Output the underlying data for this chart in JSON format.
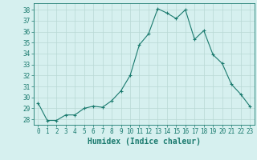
{
  "x": [
    0,
    1,
    2,
    3,
    4,
    5,
    6,
    7,
    8,
    9,
    10,
    11,
    12,
    13,
    14,
    15,
    16,
    17,
    18,
    19,
    20,
    21,
    22,
    23
  ],
  "y": [
    29.5,
    27.9,
    27.9,
    28.4,
    28.4,
    29.0,
    29.2,
    29.1,
    29.7,
    30.6,
    32.0,
    34.8,
    35.8,
    38.1,
    37.7,
    37.2,
    38.0,
    35.3,
    36.1,
    33.9,
    33.1,
    31.2,
    30.3,
    29.2
  ],
  "line_color": "#1a7a6e",
  "marker": "+",
  "marker_size": 3.5,
  "marker_color": "#1a7a6e",
  "bg_color": "#d6f0ef",
  "grid_color": "#b8d8d5",
  "axis_color": "#1a7a6e",
  "xlabel": "Humidex (Indice chaleur)",
  "ylim": [
    27.5,
    38.6
  ],
  "xlim": [
    -0.5,
    23.5
  ],
  "yticks": [
    28,
    29,
    30,
    31,
    32,
    33,
    34,
    35,
    36,
    37,
    38
  ],
  "xticks": [
    0,
    1,
    2,
    3,
    4,
    5,
    6,
    7,
    8,
    9,
    10,
    11,
    12,
    13,
    14,
    15,
    16,
    17,
    18,
    19,
    20,
    21,
    22,
    23
  ],
  "tick_fontsize": 5.5,
  "label_fontsize": 7.0
}
